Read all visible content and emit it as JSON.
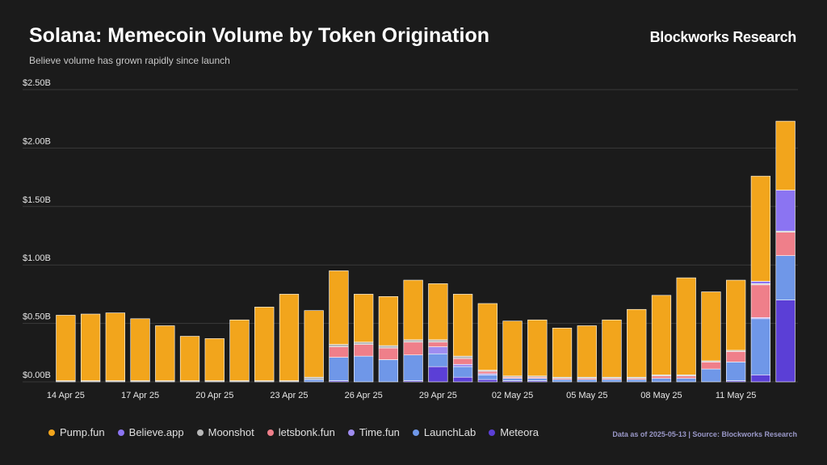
{
  "header": {
    "title": "Solana: Memecoin Volume by Token Origination",
    "subtitle": "Believe volume has grown rapidly since launch",
    "brand": "Blockworks Research"
  },
  "footer": {
    "source": "Data as of 2025-05-13 | Source: Blockworks Research"
  },
  "chart_data": {
    "type": "bar",
    "stacked": true,
    "ylim": [
      0,
      2.5
    ],
    "yticks": [
      0,
      0.5,
      1.0,
      1.5,
      2.0,
      2.5
    ],
    "ytick_labels": [
      "$0.00B",
      "$0.50B",
      "$1.00B",
      "$1.50B",
      "$2.00B",
      "$2.50B"
    ],
    "grid": true,
    "legend_position": "bottom-left",
    "categories": [
      "14 Apr 25",
      "15 Apr 25",
      "16 Apr 25",
      "17 Apr 25",
      "18 Apr 25",
      "19 Apr 25",
      "20 Apr 25",
      "21 Apr 25",
      "22 Apr 25",
      "23 Apr 25",
      "24 Apr 25",
      "25 Apr 25",
      "26 Apr 25",
      "27 Apr 25",
      "28 Apr 25",
      "29 Apr 25",
      "30 Apr 25",
      "01 May 25",
      "02 May 25",
      "03 May 25",
      "04 May 25",
      "05 May 25",
      "06 May 25",
      "07 May 25",
      "08 May 25",
      "09 May 25",
      "10 May 25",
      "11 May 25",
      "12 May 25",
      "13 May 25"
    ],
    "xtick_labels": [
      {
        "index": 0,
        "label": "14 Apr 25"
      },
      {
        "index": 3,
        "label": "17 Apr 25"
      },
      {
        "index": 6,
        "label": "20 Apr 25"
      },
      {
        "index": 9,
        "label": "23 Apr 25"
      },
      {
        "index": 12,
        "label": "26 Apr 25"
      },
      {
        "index": 15,
        "label": "29 Apr 25"
      },
      {
        "index": 18,
        "label": "02 May 25"
      },
      {
        "index": 21,
        "label": "05 May 25"
      },
      {
        "index": 24,
        "label": "08 May 25"
      },
      {
        "index": 27,
        "label": "11 May 25"
      }
    ],
    "series": [
      {
        "name": "Meteora",
        "color": "#5b3fd6",
        "values": [
          0,
          0,
          0,
          0,
          0,
          0,
          0,
          0,
          0,
          0,
          0,
          0.01,
          0,
          0,
          0.01,
          0.13,
          0.04,
          0.02,
          0.01,
          0.01,
          0,
          0,
          0,
          0,
          0,
          0,
          0,
          0.01,
          0.06,
          0.7
        ]
      },
      {
        "name": "LaunchLab",
        "color": "#6f97e8",
        "values": [
          0,
          0,
          0,
          0,
          0,
          0,
          0,
          0,
          0,
          0,
          0.02,
          0.2,
          0.22,
          0.19,
          0.22,
          0.11,
          0.09,
          0.04,
          0.02,
          0.02,
          0.02,
          0.02,
          0.02,
          0.02,
          0.03,
          0.03,
          0.11,
          0.16,
          0.48,
          0.38
        ]
      },
      {
        "name": "Time.fun",
        "color": "#9f8cf0",
        "values": [
          0,
          0,
          0,
          0,
          0,
          0,
          0,
          0,
          0,
          0,
          0,
          0,
          0,
          0,
          0,
          0.06,
          0.02,
          0.01,
          0,
          0,
          0,
          0,
          0,
          0,
          0,
          0,
          0,
          0,
          0.01,
          0
        ]
      },
      {
        "name": "letsbonk.fun",
        "color": "#ef7f8a",
        "values": [
          0,
          0,
          0,
          0,
          0,
          0,
          0,
          0,
          0,
          0,
          0,
          0.09,
          0.1,
          0.1,
          0.11,
          0.04,
          0.05,
          0.02,
          0.01,
          0.01,
          0.01,
          0.01,
          0.01,
          0.01,
          0.02,
          0.02,
          0.06,
          0.09,
          0.28,
          0.2
        ]
      },
      {
        "name": "Moonshot",
        "color": "#b8b8b8",
        "values": [
          0.01,
          0.01,
          0.01,
          0.01,
          0.01,
          0.01,
          0.01,
          0.01,
          0.01,
          0.01,
          0.02,
          0.02,
          0.02,
          0.02,
          0.02,
          0.02,
          0.02,
          0.01,
          0.01,
          0.01,
          0.01,
          0.01,
          0.01,
          0.01,
          0.01,
          0.01,
          0.01,
          0.01,
          0.01,
          0.01
        ]
      },
      {
        "name": "Believe.app",
        "color": "#8b74f2",
        "values": [
          0,
          0,
          0,
          0,
          0,
          0,
          0,
          0,
          0,
          0,
          0,
          0,
          0,
          0,
          0,
          0,
          0,
          0,
          0,
          0,
          0,
          0,
          0,
          0,
          0,
          0,
          0,
          0,
          0.02,
          0.35
        ]
      },
      {
        "name": "Pump.fun",
        "color": "#f2a51c",
        "values": [
          0.56,
          0.57,
          0.58,
          0.53,
          0.47,
          0.38,
          0.36,
          0.52,
          0.63,
          0.74,
          0.57,
          0.63,
          0.41,
          0.42,
          0.51,
          0.48,
          0.53,
          0.57,
          0.47,
          0.48,
          0.42,
          0.44,
          0.49,
          0.58,
          0.68,
          0.83,
          0.59,
          0.6,
          0.9,
          0.59
        ]
      }
    ],
    "legend": [
      {
        "name": "Pump.fun",
        "color": "#f2a51c"
      },
      {
        "name": "Believe.app",
        "color": "#8b74f2"
      },
      {
        "name": "Moonshot",
        "color": "#b8b8b8"
      },
      {
        "name": "letsbonk.fun",
        "color": "#ef7f8a"
      },
      {
        "name": "Time.fun",
        "color": "#9f8cf0"
      },
      {
        "name": "LaunchLab",
        "color": "#6f97e8"
      },
      {
        "name": "Meteora",
        "color": "#5b3fd6"
      }
    ]
  }
}
